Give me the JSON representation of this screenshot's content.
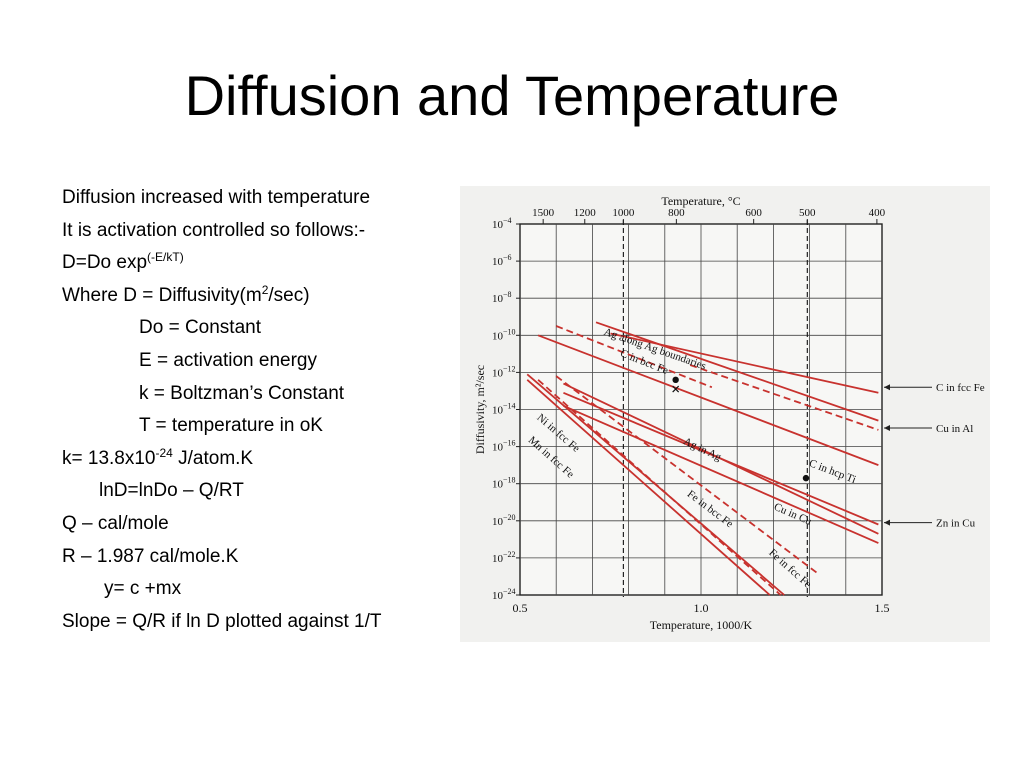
{
  "slide": {
    "title": "Diffusion and Temperature",
    "lines": [
      {
        "text": "Diffusion increased with temperature"
      },
      {
        "text": "It is activation controlled so follows:-"
      },
      {
        "pre": "D=Do exp",
        "sup": "(-E/kT)",
        "post": ""
      },
      {
        "pre": "Where D = Diffusivity(m",
        "sup": "2",
        "post": "/sec)"
      },
      {
        "text": "Do = Constant"
      },
      {
        "text": "E = activation energy"
      },
      {
        "text": "k = Boltzman’s Constant"
      },
      {
        "text": "T = temperature in oK"
      },
      {
        "pre": "k= 13.8x10",
        "sup": "-24",
        "post": " J/atom.K"
      },
      {
        "text": "lnD=lnDo – Q/RT"
      },
      {
        "text": "Q – cal/mole"
      },
      {
        "text": "R – 1.987 cal/mole.K"
      },
      {
        "text": "y= c +mx"
      },
      {
        "text": "Slope = Q/R if ln D plotted against 1/T"
      }
    ]
  },
  "chart_data": {
    "type": "line",
    "top_axis_label": "Temperature, °C",
    "xlabel": "Temperature, 1000/K",
    "ylabel": "Diffusivity, m²/sec",
    "x_log": false,
    "y_log": true,
    "xlim": [
      0.5,
      1.5
    ],
    "ylim": [
      1e-24,
      0.0001
    ],
    "x_ticks": [
      {
        "v": 0.5,
        "label": "0.5"
      },
      {
        "v": 1.0,
        "label": "1.0"
      },
      {
        "v": 1.5,
        "label": "1.5"
      }
    ],
    "y_ticks": [
      {
        "exp": -4,
        "label": "10",
        "sup": "−4"
      },
      {
        "exp": -6,
        "label": "10",
        "sup": "−6"
      },
      {
        "exp": -8,
        "label": "10",
        "sup": "−8"
      },
      {
        "exp": -10,
        "label": "10",
        "sup": "−10"
      },
      {
        "exp": -12,
        "label": "10",
        "sup": "−12"
      },
      {
        "exp": -14,
        "label": "10",
        "sup": "−14"
      },
      {
        "exp": -16,
        "label": "10",
        "sup": "−16"
      },
      {
        "exp": -18,
        "label": "10",
        "sup": "−18"
      },
      {
        "exp": -20,
        "label": "10",
        "sup": "−20"
      },
      {
        "exp": -22,
        "label": "10",
        "sup": "−22"
      },
      {
        "exp": -24,
        "label": "10",
        "sup": "−24"
      }
    ],
    "top_ticks": [
      {
        "celsius": 1500,
        "label": "1500"
      },
      {
        "celsius": 1200,
        "label": "1200"
      },
      {
        "celsius": 1000,
        "label": "1000"
      },
      {
        "celsius": 800,
        "label": "800"
      },
      {
        "celsius": 600,
        "label": "600"
      },
      {
        "celsius": 500,
        "label": "500"
      },
      {
        "celsius": 400,
        "label": "400"
      }
    ],
    "reference_lines_celsius": [
      1000,
      500
    ],
    "series": [
      {
        "name": "Ag along Ag boundaries",
        "dashed": false,
        "points": [
          [
            0.71,
            -9.3
          ],
          [
            1.49,
            -14.6
          ]
        ]
      },
      {
        "name": "C in fcc Fe",
        "dashed": false,
        "points": [
          [
            0.75,
            -9.9
          ],
          [
            1.49,
            -13.1
          ]
        ]
      },
      {
        "name": "C in bcc Fe",
        "dashed": true,
        "points": [
          [
            0.6,
            -9.5
          ],
          [
            1.03,
            -12.8
          ]
        ]
      },
      {
        "name": "Cu in Al",
        "dashed": true,
        "points": [
          [
            0.97,
            -11.6
          ],
          [
            1.49,
            -15.1
          ]
        ]
      },
      {
        "name": "C in hcp Ti",
        "dashed": false,
        "points": [
          [
            0.55,
            -10.0
          ],
          [
            1.49,
            -17.0
          ]
        ]
      },
      {
        "name": "Ag in Ag",
        "dashed": false,
        "points": [
          [
            0.62,
            -12.6
          ],
          [
            1.49,
            -20.7
          ]
        ]
      },
      {
        "name": "Zn in Cu",
        "dashed": false,
        "points": [
          [
            0.62,
            -13.1
          ],
          [
            1.49,
            -20.2
          ]
        ]
      },
      {
        "name": "Cu in Cu",
        "dashed": false,
        "points": [
          [
            0.62,
            -13.8
          ],
          [
            1.49,
            -21.2
          ]
        ]
      },
      {
        "name": "Ni in fcc Fe",
        "dashed": false,
        "points": [
          [
            0.52,
            -12.1
          ],
          [
            1.23,
            -24
          ]
        ]
      },
      {
        "name": "Mn in fcc Fe",
        "dashed": false,
        "points": [
          [
            0.52,
            -12.4
          ],
          [
            1.19,
            -24
          ]
        ]
      },
      {
        "name": "Fe in bcc Fe",
        "dashed": true,
        "points": [
          [
            0.6,
            -12.2
          ],
          [
            1.32,
            -22.8
          ]
        ]
      },
      {
        "name": "Fe in fcc Fe",
        "dashed": true,
        "points": [
          [
            0.55,
            -12.4
          ],
          [
            1.22,
            -24
          ]
        ]
      }
    ],
    "inline_labels": [
      {
        "text": "Ag along Ag boundaries",
        "x": 0.87,
        "y": -10.9
      },
      {
        "text": "C in bcc Fe",
        "x": 0.84,
        "y": -11.6
      },
      {
        "text": "Ag in Ag",
        "x": 1.0,
        "y": -16.3
      },
      {
        "text": "C in hcp Ti",
        "x": 1.36,
        "y": -17.5
      },
      {
        "text": "Ni in fcc Fe",
        "x": 0.6,
        "y": -15.4
      },
      {
        "text": "Mn in fcc Fe",
        "x": 0.58,
        "y": -16.7
      },
      {
        "text": "Fe in bcc Fe",
        "x": 1.02,
        "y": -19.5
      },
      {
        "text": "Cu in Cu",
        "x": 1.25,
        "y": -19.8
      },
      {
        "text": "Fe in fcc Fe",
        "x": 1.24,
        "y": -22.7
      }
    ],
    "right_labels": [
      {
        "text": "C in fcc Fe",
        "y": -12.8
      },
      {
        "text": "Cu in Al",
        "y": -15.0
      },
      {
        "text": "Zn in Cu",
        "y": -20.1
      }
    ],
    "markers": [
      {
        "kind": "dot",
        "x": 0.93,
        "y": -12.4
      },
      {
        "kind": "dot",
        "x": 1.29,
        "y": -17.7
      },
      {
        "kind": "cross",
        "x": 0.93,
        "y": -12.9
      }
    ]
  }
}
